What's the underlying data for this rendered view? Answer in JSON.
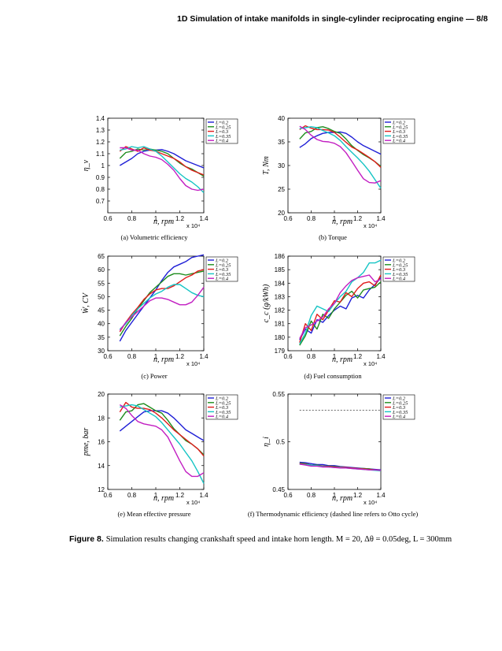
{
  "running_head": "1D Simulation of intake manifolds in single-cylinder reciprocating engine — 8/8",
  "figure": {
    "label": "Figure 8.",
    "caption": "Simulation results changing crankshaft speed and intake horn length. M = 20, Δθ = 0.05deg, L = 300mm"
  },
  "colors": {
    "L=0.2": "#1f1fd6",
    "L=0.25": "#1e8c1e",
    "L=0.3": "#e01b1b",
    "L=0.35": "#14c4c4",
    "L=0.4": "#c21ec2"
  },
  "chart_data": [
    {
      "type": "line",
      "subcaption": "(a) Volumetric efficiency",
      "ylabel": "η_v",
      "xlabel": "n, rpm",
      "x_multiplier": "x 10⁴",
      "xlim": [
        0.6,
        1.4
      ],
      "ylim": [
        0.6,
        1.4
      ],
      "xticks": [
        "0.6",
        "0.8",
        "1",
        "1.2",
        "1.4"
      ],
      "yticks": [
        "0.7",
        "0.8",
        "0.9",
        "1",
        "1.1",
        "1.2",
        "1.3",
        "1.4"
      ],
      "legend": [
        "L=0.2",
        "L=0.25",
        "L=0.3",
        "L=0.35",
        "L=0.4"
      ],
      "x": [
        0.7,
        0.75,
        0.8,
        0.85,
        0.9,
        0.95,
        1.0,
        1.05,
        1.1,
        1.15,
        1.2,
        1.25,
        1.3,
        1.35,
        1.4
      ],
      "series": [
        {
          "name": "L=0.2",
          "values": [
            1.0,
            1.03,
            1.06,
            1.1,
            1.12,
            1.13,
            1.13,
            1.135,
            1.12,
            1.1,
            1.07,
            1.04,
            1.02,
            1.0,
            0.98
          ]
        },
        {
          "name": "L=0.25",
          "values": [
            1.06,
            1.11,
            1.12,
            1.14,
            1.13,
            1.14,
            1.13,
            1.12,
            1.1,
            1.06,
            1.02,
            0.99,
            0.97,
            0.94,
            0.91
          ]
        },
        {
          "name": "L=0.3",
          "values": [
            1.12,
            1.16,
            1.14,
            1.12,
            1.15,
            1.13,
            1.12,
            1.1,
            1.08,
            1.06,
            1.03,
            0.99,
            0.96,
            0.94,
            0.92
          ]
        },
        {
          "name": "L=0.35",
          "values": [
            1.13,
            1.14,
            1.16,
            1.15,
            1.16,
            1.14,
            1.12,
            1.08,
            1.03,
            0.98,
            0.93,
            0.89,
            0.86,
            0.82,
            0.77
          ]
        },
        {
          "name": "L=0.4",
          "values": [
            1.15,
            1.15,
            1.13,
            1.13,
            1.1,
            1.08,
            1.07,
            1.05,
            1.01,
            0.96,
            0.89,
            0.83,
            0.8,
            0.79,
            0.8
          ]
        }
      ]
    },
    {
      "type": "line",
      "subcaption": "(b) Torque",
      "ylabel": "T, Nm",
      "xlabel": "n, rpm",
      "x_multiplier": "x 10⁴",
      "xlim": [
        0.6,
        1.4
      ],
      "ylim": [
        20,
        40
      ],
      "xticks": [
        "0.6",
        "0.8",
        "1",
        "1.2",
        "1.4"
      ],
      "yticks": [
        "20",
        "25",
        "30",
        "35",
        "40"
      ],
      "legend": [
        "L=0.2",
        "L=0.25",
        "L=0.3",
        "L=0.35",
        "L=0.4"
      ],
      "x": [
        0.7,
        0.75,
        0.8,
        0.85,
        0.9,
        0.95,
        1.0,
        1.05,
        1.1,
        1.15,
        1.2,
        1.25,
        1.3,
        1.35,
        1.4
      ],
      "series": [
        {
          "name": "L=0.2",
          "values": [
            33.8,
            34.6,
            35.7,
            36.3,
            36.8,
            37.0,
            37.0,
            37.1,
            36.8,
            36.0,
            35.0,
            34.2,
            33.6,
            33.0,
            32.4
          ]
        },
        {
          "name": "L=0.25",
          "values": [
            35.6,
            36.9,
            37.2,
            38.0,
            38.2,
            37.8,
            37.2,
            36.8,
            35.6,
            34.2,
            33.2,
            32.3,
            31.6,
            30.8,
            29.8
          ]
        },
        {
          "name": "L=0.3",
          "values": [
            37.6,
            38.4,
            37.9,
            37.6,
            37.6,
            37.5,
            37.0,
            36.0,
            34.9,
            33.9,
            33.3,
            32.5,
            31.7,
            30.8,
            29.6
          ]
        },
        {
          "name": "L=0.35",
          "values": [
            37.8,
            38.0,
            38.2,
            38.0,
            37.4,
            36.9,
            36.3,
            35.3,
            34.0,
            32.8,
            31.6,
            30.3,
            28.8,
            27.0,
            25.2
          ]
        },
        {
          "name": "L=0.4",
          "values": [
            38.3,
            37.6,
            36.4,
            35.5,
            35.1,
            35.0,
            34.7,
            34.0,
            32.7,
            30.9,
            29.0,
            27.2,
            26.4,
            26.3,
            26.8
          ]
        }
      ]
    },
    {
      "type": "line",
      "subcaption": "(c) Power",
      "ylabel": "Ẇ, CV",
      "xlabel": "n, rpm",
      "x_multiplier": "x 10⁴",
      "xlim": [
        0.6,
        1.4
      ],
      "ylim": [
        30,
        65
      ],
      "xticks": [
        "0.6",
        "0.8",
        "1",
        "1.2",
        "1.4"
      ],
      "yticks": [
        "30",
        "35",
        "40",
        "45",
        "50",
        "55",
        "60",
        "65"
      ],
      "legend": [
        "L=0.2",
        "L=0.25",
        "L=0.3",
        "L=0.35",
        "L=0.4"
      ],
      "x": [
        0.7,
        0.75,
        0.8,
        0.85,
        0.9,
        0.95,
        1.0,
        1.05,
        1.1,
        1.15,
        1.2,
        1.25,
        1.3,
        1.35,
        1.4
      ],
      "series": [
        {
          "name": "L=0.2",
          "values": [
            33.5,
            37.5,
            40.5,
            43.5,
            46.5,
            49.5,
            52.5,
            56.0,
            59.0,
            61.0,
            62.0,
            63.0,
            64.5,
            65.0,
            65.5
          ]
        },
        {
          "name": "L=0.25",
          "values": [
            35.5,
            39.0,
            42.0,
            45.5,
            48.5,
            51.5,
            53.5,
            55.5,
            57.5,
            58.5,
            58.5,
            58.0,
            58.5,
            59.0,
            59.5
          ]
        },
        {
          "name": "L=0.3",
          "values": [
            37.0,
            40.5,
            43.5,
            46.0,
            49.0,
            51.0,
            52.5,
            53.0,
            53.0,
            54.0,
            55.5,
            57.0,
            58.0,
            59.5,
            60.0
          ]
        },
        {
          "name": "L=0.35",
          "values": [
            38.0,
            40.0,
            43.0,
            45.5,
            47.5,
            49.5,
            51.0,
            52.0,
            53.5,
            54.5,
            54.5,
            53.0,
            51.5,
            50.5,
            50.0
          ]
        },
        {
          "name": "L=0.4",
          "values": [
            37.5,
            40.5,
            42.5,
            44.5,
            46.5,
            48.5,
            49.5,
            49.5,
            49.0,
            48.0,
            47.0,
            47.0,
            48.0,
            50.5,
            53.5
          ]
        }
      ]
    },
    {
      "type": "line",
      "subcaption": "(d) Fuel consumption",
      "ylabel": "c_c (g/kWh)",
      "xlabel": "n, rpm",
      "x_multiplier": "x 10⁴",
      "xlim": [
        0.6,
        1.4
      ],
      "ylim": [
        179,
        186
      ],
      "xticks": [
        "0.6",
        "0.8",
        "1",
        "1.2",
        "1.4"
      ],
      "yticks": [
        "179",
        "180",
        "181",
        "182",
        "183",
        "184",
        "185",
        "186"
      ],
      "legend": [
        "L=0.2",
        "L=0.25",
        "L=0.3",
        "L=0.35",
        "L=0.4"
      ],
      "x": [
        0.7,
        0.75,
        0.8,
        0.85,
        0.9,
        0.95,
        1.0,
        1.05,
        1.1,
        1.15,
        1.2,
        1.25,
        1.3,
        1.35,
        1.4
      ],
      "series": [
        {
          "name": "L=0.2",
          "values": [
            179.8,
            180.6,
            180.3,
            181.3,
            181.1,
            181.6,
            182.0,
            182.3,
            182.1,
            182.9,
            183.1,
            182.9,
            183.5,
            183.9,
            184.4
          ]
        },
        {
          "name": "L=0.25",
          "values": [
            179.4,
            180.1,
            181.2,
            180.6,
            181.7,
            181.4,
            182.1,
            182.6,
            183.1,
            183.4,
            182.9,
            183.5,
            183.6,
            183.7,
            184.1
          ]
        },
        {
          "name": "L=0.3",
          "values": [
            179.6,
            181.0,
            180.5,
            181.7,
            181.3,
            182.0,
            182.7,
            182.6,
            183.3,
            183.0,
            183.6,
            184.0,
            184.1,
            183.8,
            184.6
          ]
        },
        {
          "name": "L=0.35",
          "values": [
            179.5,
            180.3,
            181.6,
            182.3,
            182.1,
            181.9,
            182.5,
            183.0,
            183.4,
            184.1,
            184.4,
            184.8,
            185.5,
            185.5,
            185.7
          ]
        },
        {
          "name": "L=0.4",
          "values": [
            179.9,
            180.7,
            180.9,
            181.2,
            181.5,
            182.1,
            182.5,
            183.3,
            183.8,
            184.2,
            184.4,
            184.5,
            184.6,
            184.1,
            184.3
          ]
        }
      ]
    },
    {
      "type": "line",
      "subcaption": "(e) Mean effective pressure",
      "ylabel": "pme, bar",
      "xlabel": "n, rpm",
      "x_multiplier": "x 10⁴",
      "xlim": [
        0.6,
        1.4
      ],
      "ylim": [
        12,
        20
      ],
      "xticks": [
        "0.6",
        "0.8",
        "1",
        "1.2",
        "1.4"
      ],
      "yticks": [
        "12",
        "14",
        "16",
        "18",
        "20"
      ],
      "legend": [
        "L=0.2",
        "L=0.25",
        "L=0.3",
        "L=0.35",
        "L=0.4"
      ],
      "x": [
        0.7,
        0.75,
        0.8,
        0.85,
        0.9,
        0.95,
        1.0,
        1.05,
        1.1,
        1.15,
        1.2,
        1.25,
        1.3,
        1.35,
        1.4
      ],
      "series": [
        {
          "name": "L=0.2",
          "values": [
            16.9,
            17.3,
            17.7,
            18.1,
            18.5,
            18.6,
            18.6,
            18.6,
            18.4,
            18.0,
            17.5,
            17.0,
            16.7,
            16.4,
            16.1
          ]
        },
        {
          "name": "L=0.25",
          "values": [
            17.8,
            18.5,
            18.6,
            19.1,
            19.2,
            18.9,
            18.6,
            18.4,
            17.8,
            17.1,
            16.6,
            16.1,
            15.8,
            15.4,
            14.9
          ]
        },
        {
          "name": "L=0.3",
          "values": [
            18.5,
            19.3,
            18.9,
            18.8,
            18.8,
            18.7,
            18.4,
            18.0,
            17.5,
            17.0,
            16.6,
            16.2,
            15.8,
            15.4,
            14.8
          ]
        },
        {
          "name": "L=0.35",
          "values": [
            18.9,
            19.0,
            19.1,
            19.0,
            18.7,
            18.4,
            18.1,
            17.6,
            17.0,
            16.4,
            15.8,
            15.1,
            14.4,
            13.5,
            12.5
          ]
        },
        {
          "name": "L=0.4",
          "values": [
            19.1,
            18.8,
            18.2,
            17.7,
            17.5,
            17.4,
            17.3,
            17.0,
            16.4,
            15.4,
            14.4,
            13.5,
            13.1,
            13.1,
            13.4
          ]
        }
      ]
    },
    {
      "type": "line",
      "subcaption": "(f) Thermodynamic efficiency (dashed line refers to Otto cycle)",
      "ylabel": "η_i",
      "xlabel": "n, rpm",
      "x_multiplier": "x 10⁴",
      "xlim": [
        0.6,
        1.4
      ],
      "ylim": [
        0.45,
        0.55
      ],
      "xticks": [
        "0.6",
        "0.8",
        "1",
        "1.2",
        "1.4"
      ],
      "yticks": [
        "0.45",
        "0.5",
        "0.55"
      ],
      "legend": [
        "L=0.2",
        "L=0.25",
        "L=0.3",
        "L=0.35",
        "L=0.4"
      ],
      "otto_reference": 0.533,
      "x": [
        0.7,
        0.75,
        0.8,
        0.85,
        0.9,
        0.95,
        1.0,
        1.05,
        1.1,
        1.15,
        1.2,
        1.25,
        1.3,
        1.35,
        1.4
      ],
      "series": [
        {
          "name": "L=0.2",
          "values": [
            0.4785,
            0.478,
            0.477,
            0.476,
            0.476,
            0.475,
            0.475,
            0.474,
            0.4735,
            0.473,
            0.4725,
            0.472,
            0.4715,
            0.471,
            0.4705
          ]
        },
        {
          "name": "L=0.25",
          "values": [
            0.4775,
            0.477,
            0.4755,
            0.4755,
            0.4745,
            0.4745,
            0.474,
            0.4735,
            0.473,
            0.4725,
            0.472,
            0.472,
            0.4715,
            0.4705,
            0.47
          ]
        },
        {
          "name": "L=0.3",
          "values": [
            0.477,
            0.4765,
            0.4755,
            0.475,
            0.4745,
            0.474,
            0.4735,
            0.4735,
            0.473,
            0.4725,
            0.472,
            0.4715,
            0.471,
            0.4705,
            0.47
          ]
        },
        {
          "name": "L=0.35",
          "values": [
            0.4765,
            0.476,
            0.4755,
            0.475,
            0.474,
            0.4735,
            0.473,
            0.473,
            0.4725,
            0.472,
            0.4715,
            0.471,
            0.4705,
            0.47,
            0.4695
          ]
        },
        {
          "name": "L=0.4",
          "values": [
            0.4765,
            0.4755,
            0.4745,
            0.4745,
            0.4735,
            0.4735,
            0.473,
            0.4725,
            0.4725,
            0.472,
            0.4715,
            0.471,
            0.4705,
            0.4705,
            0.47
          ]
        }
      ]
    }
  ]
}
